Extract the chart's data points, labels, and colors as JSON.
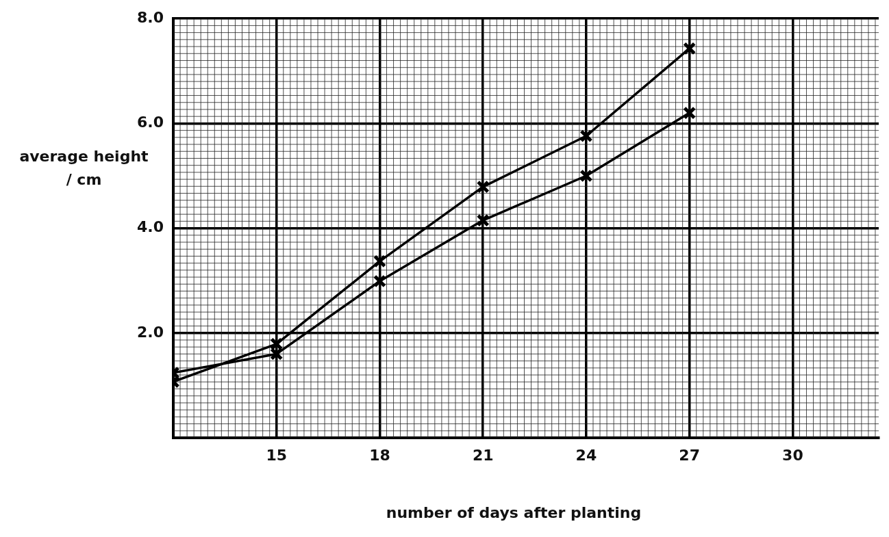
{
  "chart_data": {
    "type": "line",
    "xlabel": "number of days after planting",
    "ylabel": "average height\n/ cm",
    "xlim": [
      12,
      32.5
    ],
    "ylim": [
      0,
      8
    ],
    "xticks": [
      {
        "value": 12,
        "label": null
      },
      15,
      18,
      21,
      24,
      27,
      30
    ],
    "yticks": [
      {
        "value": 0,
        "label": null
      },
      {
        "value": 2,
        "label": "2.0"
      },
      {
        "value": 4,
        "label": "4.0"
      },
      {
        "value": 6,
        "label": "6.0"
      },
      {
        "value": 8,
        "label": "8.0"
      }
    ],
    "grid": true,
    "legend": false,
    "marker": "cross",
    "line_style": "solid",
    "series": [
      {
        "color": "#000000",
        "x": [
          12,
          15,
          18,
          21,
          24,
          27
        ],
        "values": [
          1.07,
          1.79,
          3.37,
          4.79,
          5.76,
          7.43
        ]
      },
      {
        "color": "#000000",
        "x": [
          12,
          15,
          18,
          21,
          24,
          27
        ],
        "values": [
          1.24,
          1.6,
          2.99,
          4.15,
          5.0,
          6.2
        ]
      }
    ]
  }
}
